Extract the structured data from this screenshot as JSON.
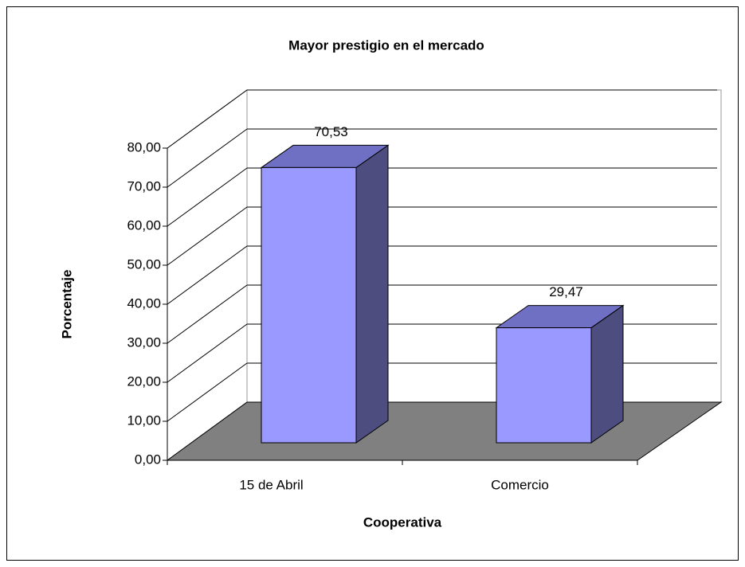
{
  "chart_data": {
    "type": "bar3d",
    "title": "Mayor prestigio en el mercado",
    "x_label": "Cooperativa",
    "y_label": "Porcentaje",
    "categories": [
      "15 de Abril",
      "Comercio"
    ],
    "values": [
      70.53,
      29.47
    ],
    "value_labels": [
      "70,53",
      "29,47"
    ],
    "color": "#9999ff",
    "ylim": [
      0,
      80
    ],
    "yticks": [
      {
        "value": 0,
        "label": "0,00"
      },
      {
        "value": 10,
        "label": "10,00"
      },
      {
        "value": 20,
        "label": "20,00"
      },
      {
        "value": 30,
        "label": "30,00"
      },
      {
        "value": 40,
        "label": "40,00"
      },
      {
        "value": 50,
        "label": "50,00"
      },
      {
        "value": 60,
        "label": "60,00"
      },
      {
        "value": 70,
        "label": "70,00"
      },
      {
        "value": 80,
        "label": "80,00"
      }
    ],
    "grid": true
  }
}
